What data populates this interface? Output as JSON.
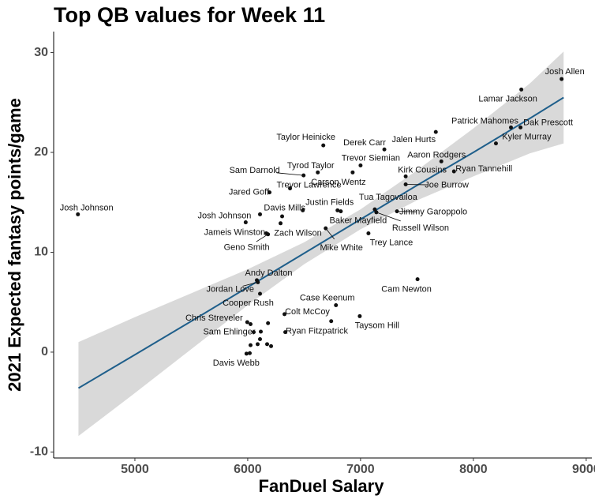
{
  "chart_data": {
    "type": "scatter",
    "title": "Top QB values for Week 11",
    "xlabel": "FanDuel Salary",
    "ylabel": "2021 Expected fantasy points/game",
    "xlim": [
      4280,
      9050
    ],
    "ylim": [
      -10.6,
      32.1
    ],
    "xticks": [
      5000,
      6000,
      7000,
      8000,
      9000
    ],
    "yticks": [
      -10,
      0,
      10,
      20,
      30
    ],
    "point_color": "#111111",
    "line_color": "#1f5f8b",
    "band_color": "#d9d9d9",
    "fit": {
      "x": [
        4500,
        5000,
        5500,
        6000,
        6500,
        7000,
        7500,
        8000,
        8500,
        8800
      ],
      "values": [
        -3.6,
        -0.26,
        3.1,
        6.5,
        9.9,
        13.3,
        16.7,
        20.0,
        23.4,
        25.5
      ],
      "lower": [
        -8.4,
        -4.1,
        0.3,
        4.7,
        8.8,
        12.3,
        15.2,
        17.6,
        19.9,
        20.9
      ],
      "upper": [
        1.0,
        3.5,
        5.9,
        8.3,
        11.0,
        14.3,
        18.2,
        22.4,
        26.9,
        30.1
      ]
    },
    "points": {
      "x": [
        8782,
        8425,
        8333,
        8418,
        8200,
        7667,
        7211,
        6670,
        7716,
        7828,
        7000,
        7400,
        7400,
        6930,
        6621,
        6495,
        6375,
        6193,
        6796,
        6488,
        7126,
        7323,
        7140,
        4495,
        6109,
        6305,
        6291,
        6825,
        5982,
        6165,
        6180,
        7070,
        6691,
        7505,
        6081,
        6090,
        6109,
        6782,
        6326,
        6993,
        6740,
        5996,
        6025,
        6180,
        6053,
        6333,
        6116,
        6109,
        6172,
        6088,
        6025,
        6207,
        5989,
        6018
      ],
      "values": [
        27.35,
        26.3,
        22.5,
        22.5,
        20.9,
        22.05,
        20.3,
        20.7,
        19.1,
        18.1,
        18.7,
        17.6,
        16.8,
        18.0,
        18.0,
        17.7,
        16.4,
        16.0,
        14.2,
        14.2,
        14.3,
        14.1,
        14.0,
        13.8,
        13.8,
        13.6,
        12.9,
        14.1,
        13.0,
        11.9,
        11.8,
        11.9,
        12.4,
        7.3,
        7.2,
        7.0,
        5.85,
        4.7,
        3.8,
        3.6,
        3.1,
        3.0,
        2.8,
        2.9,
        2.0,
        2.0,
        2.05,
        1.3,
        0.8,
        0.8,
        0.7,
        0.6,
        -0.15,
        -0.1
      ],
      "labels": [
        "Josh Allen",
        "Lamar Jackson",
        "Patrick Mahomes",
        "Dak Prescott",
        "Kyler Murray",
        "Jalen Hurts",
        "Derek Carr",
        "Taylor Heinicke",
        "Aaron Rodgers",
        "Ryan Tannehill",
        "Trevor Siemian",
        "Kirk Cousins",
        "Joe Burrow",
        "Carson Wentz",
        "Tyrod Taylor",
        "Sam Darnold",
        "Trevor Lawrence",
        "Jared Goff",
        "Justin Fields",
        "Davis Mills",
        "Tua Tagovailoa",
        "Jimmy Garoppolo",
        "Russell Wilson",
        "Josh Johnson",
        "Josh Johnson",
        null,
        null,
        "Baker Mayfield",
        "Jameis Winston",
        "Zach Wilson",
        "Geno Smith",
        "Trey Lance",
        "Mike White",
        "Cam Newton",
        "Andy Dalton",
        "Jordan Love",
        "Cooper Rush",
        "Case Keenum",
        "Colt McCoy",
        "Taysom Hill",
        null,
        "Chris Streveler",
        null,
        null,
        "Sam Ehlinger",
        "Ryan Fitzpatrick",
        null,
        null,
        null,
        null,
        null,
        null,
        "Davis Webb",
        null
      ]
    }
  }
}
